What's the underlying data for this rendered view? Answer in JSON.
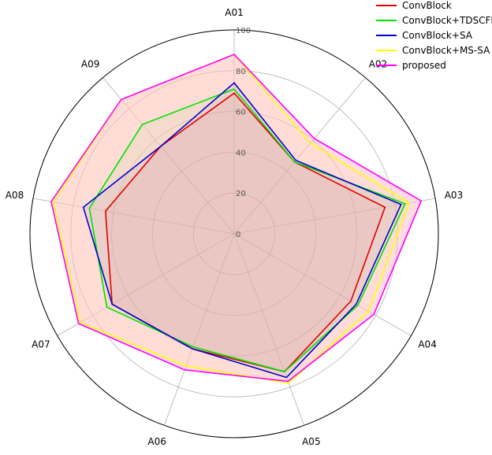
{
  "chart_data": {
    "type": "radar",
    "categories": [
      "A01",
      "A02",
      "A03",
      "A04",
      "A05",
      "A06",
      "A07",
      "A08",
      "A09"
    ],
    "rlim": [
      0,
      100
    ],
    "rticks": [
      0,
      20,
      40,
      60,
      80,
      100
    ],
    "grid": true,
    "legend_position": "top-right",
    "series": [
      {
        "name": "ConvBlock",
        "color": "#e00000",
        "values": [
          69,
          46,
          75,
          66,
          72,
          60,
          69,
          64,
          56
        ]
      },
      {
        "name": "ConvBlock+TDSCFN",
        "color": "#00e000",
        "values": [
          71,
          46,
          85,
          70,
          72,
          59,
          72,
          72,
          70
        ]
      },
      {
        "name": "ConvBlock+SA",
        "color": "#0000cc",
        "values": [
          74,
          47,
          83,
          69,
          75,
          60,
          69,
          75,
          56
        ]
      },
      {
        "name": "ConvBlock+MS-SA",
        "color": "#ffff00",
        "values": [
          88,
          58,
          87,
          76,
          78,
          69,
          87,
          90,
          86
        ]
      },
      {
        "name": "proposed",
        "color": "#ff00ff",
        "values": [
          88,
          61,
          93,
          79,
          77,
          71,
          88,
          91,
          86
        ],
        "fill": "#ffc0cb"
      }
    ]
  }
}
